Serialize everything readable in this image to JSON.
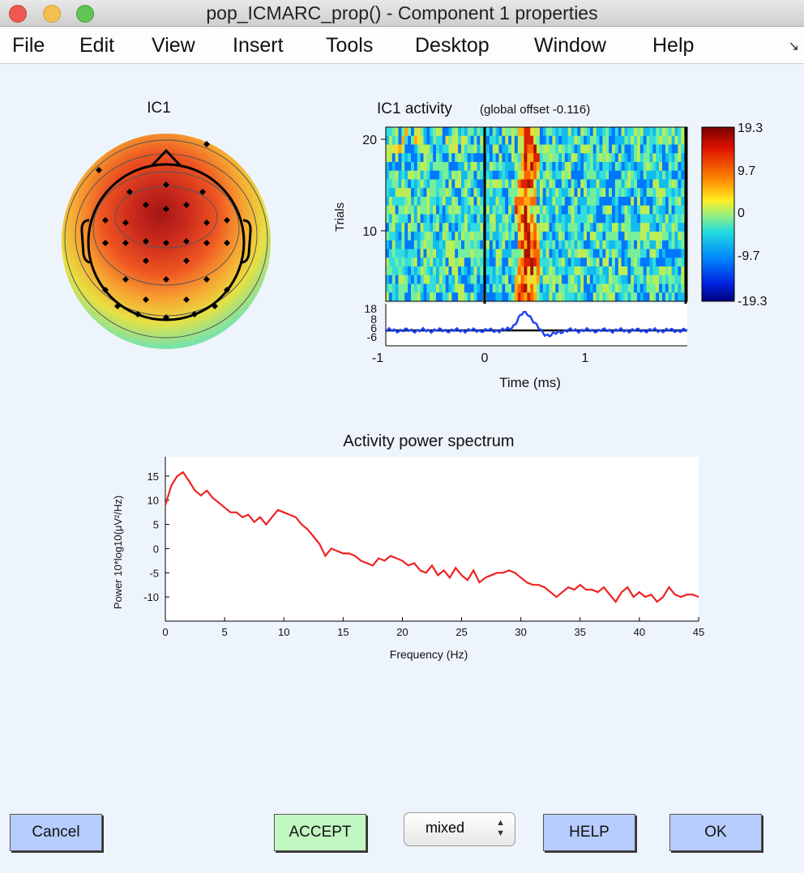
{
  "window": {
    "title": "pop_ICMARC_prop() - Component 1 properties",
    "traffic_lights": {
      "close": "#ee5a52",
      "minimize": "#f4bf4f",
      "zoom": "#61c554"
    }
  },
  "menu": {
    "items": [
      "File",
      "Edit",
      "View",
      "Insert",
      "Tools",
      "Desktop",
      "Window",
      "Help"
    ],
    "overflow_icon": "↘"
  },
  "topomap": {
    "title": "IC1"
  },
  "erpimage": {
    "title": "IC1 activity",
    "subtitle": "(global offset -0.116)",
    "ylabel": "Trials",
    "xlabel": "Time (ms)",
    "trial_ticks": [
      "20",
      "10"
    ],
    "time_ticks": [
      "-1",
      "0",
      "1"
    ],
    "erp_ticks": [
      "18",
      "8",
      "6",
      "-6"
    ],
    "colorbar_ticks": [
      "19.3",
      "9.7",
      "0",
      "-9.7",
      "-19.3"
    ]
  },
  "chart_data": {
    "type": "line",
    "title": "Activity power spectrum",
    "xlabel": "Frequency (Hz)",
    "ylabel": "Power 10*log10(μV²/Hz)",
    "xlim": [
      0,
      45
    ],
    "ylim": [
      -15,
      19
    ],
    "x_ticks": [
      0,
      5,
      10,
      15,
      20,
      25,
      30,
      35,
      40,
      45
    ],
    "y_ticks": [
      15,
      10,
      5,
      0,
      -5,
      -10
    ],
    "grid": false,
    "series": [
      {
        "color": "#ee2222",
        "x": [
          0,
          0.5,
          1,
          1.5,
          2,
          2.5,
          3,
          3.5,
          4,
          4.5,
          5,
          5.5,
          6,
          6.5,
          7,
          7.5,
          8,
          8.5,
          9,
          9.5,
          10,
          10.5,
          11,
          11.5,
          12,
          12.5,
          13,
          13.5,
          14,
          14.5,
          15,
          15.5,
          16,
          16.5,
          17,
          17.5,
          18,
          18.5,
          19,
          19.5,
          20,
          20.5,
          21,
          21.5,
          22,
          22.5,
          23,
          23.5,
          24,
          24.5,
          25,
          25.5,
          26,
          26.5,
          27,
          27.5,
          28,
          28.5,
          29,
          29.5,
          30,
          30.5,
          31,
          31.5,
          32,
          32.5,
          33,
          33.5,
          34,
          34.5,
          35,
          35.5,
          36,
          36.5,
          37,
          37.5,
          38,
          38.5,
          39,
          39.5,
          40,
          40.5,
          41,
          41.5,
          42,
          42.5,
          43,
          43.5,
          44,
          44.5,
          45
        ],
        "y": [
          9,
          13,
          15,
          15.8,
          14,
          12,
          11,
          12,
          10.5,
          9.5,
          8.5,
          7.5,
          7.5,
          6.5,
          7,
          5.5,
          6.5,
          5,
          6.5,
          8,
          7.5,
          7,
          6.5,
          5,
          4,
          2.5,
          1,
          -1.5,
          0,
          -0.5,
          -1,
          -1,
          -1.5,
          -2.5,
          -3,
          -3.5,
          -2,
          -2.5,
          -1.5,
          -2,
          -2.5,
          -3.5,
          -3,
          -4.5,
          -5,
          -3.5,
          -5.5,
          -4.5,
          -6,
          -4,
          -5.5,
          -6.5,
          -4.5,
          -7,
          -6,
          -5.5,
          -5,
          -5,
          -4.5,
          -5,
          -6,
          -7,
          -7.5,
          -7.5,
          -8,
          -9,
          -10,
          -9,
          -8,
          -8.5,
          -7.5,
          -8.5,
          -8.5,
          -9,
          -8,
          -9.5,
          -11,
          -9,
          -8,
          -10,
          -9,
          -10,
          -9.5,
          -11,
          -10,
          -8,
          -9.5,
          -10,
          -9.5,
          -9.5,
          -10
        ]
      }
    ]
  },
  "buttons": {
    "cancel": "Cancel",
    "accept": "ACCEPT",
    "help": "HELP",
    "ok": "OK"
  },
  "select": {
    "value": "mixed"
  }
}
